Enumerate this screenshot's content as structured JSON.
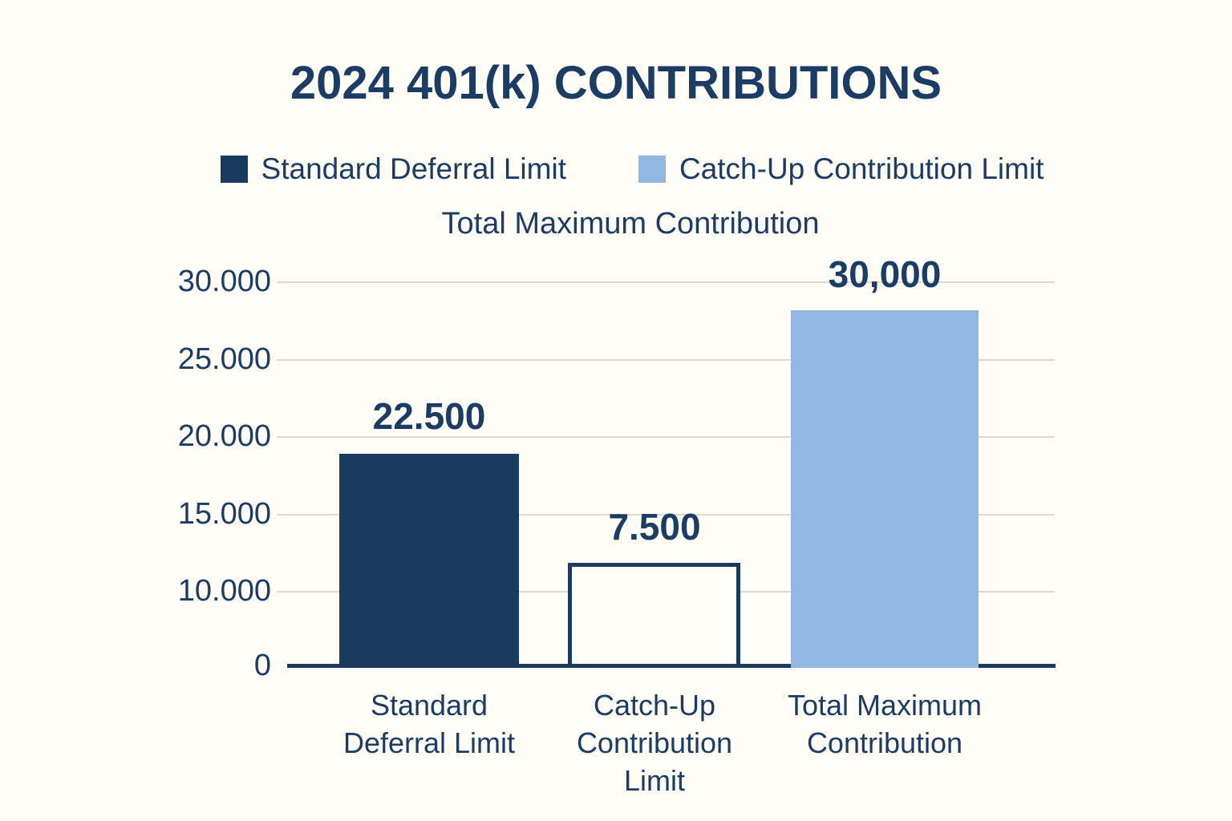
{
  "page": {
    "background": "#FFFDF5"
  },
  "header": {
    "title": "2024 401(k) CONTRIBUTIONS"
  },
  "legend": {
    "items": [
      {
        "label": "Standard Deferral Limit",
        "color": "#1B3A5F"
      },
      {
        "label": "Catch-Up Contribution Limit",
        "color": "#92B7E0"
      }
    ]
  },
  "subtitle": "Total Maximum Contribution",
  "chart_data": {
    "type": "bar",
    "title": "2024 401(k) CONTRIBUTIONS",
    "subtitle": "Total Maximum Contribution",
    "categories": [
      "Standard Deferral Limit",
      "Catch-Up Contribution Limit",
      "Total Maximum Contribution"
    ],
    "category_label_lines": [
      [
        "Standard",
        "Deferral Limit"
      ],
      [
        "Catch-Up",
        "Contribution",
        "Limit"
      ],
      [
        "Total Maximum",
        "Contribution"
      ]
    ],
    "values": [
      22500,
      7500,
      30000
    ],
    "value_labels": [
      "22.500",
      "7.500",
      "30,000"
    ],
    "bar_styles": [
      {
        "fill": "#1B3A5F",
        "border": "none"
      },
      {
        "fill": "#FFFDF6",
        "border": "#1B3A5F"
      },
      {
        "fill": "#92B7E0",
        "border": "none"
      }
    ],
    "y_ticks": [
      "30.000",
      "25.000",
      "20.000",
      "15.000",
      "10.000",
      "0"
    ],
    "ylim": [
      0,
      30000
    ],
    "grid": true,
    "legend_position": "top",
    "legend_entries": [
      "Standard Deferral Limit",
      "Catch-Up Contribution Limit"
    ],
    "axis_color": "#1B3A5F",
    "grid_color": "#DEDAD2",
    "background_color": "#FFFDF5"
  }
}
